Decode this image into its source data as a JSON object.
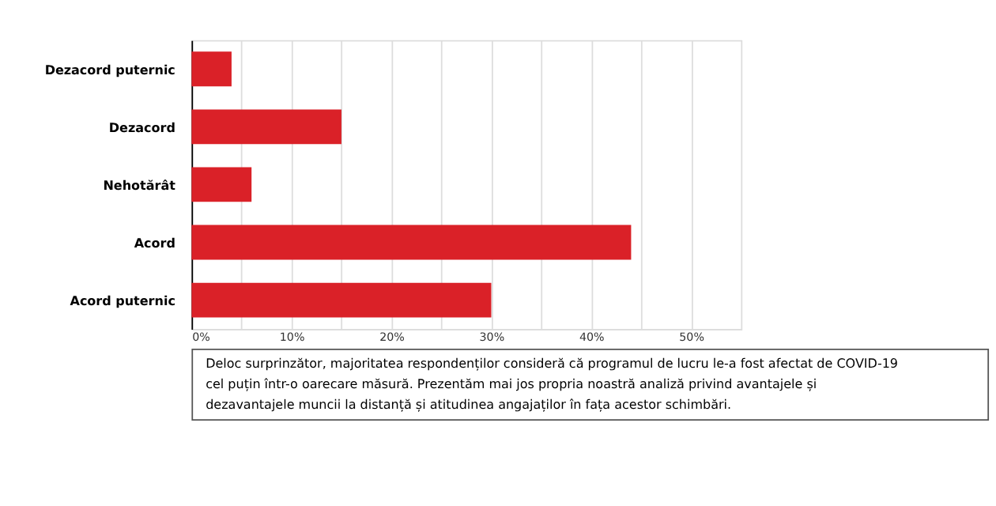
{
  "chart_data": {
    "type": "bar",
    "orientation": "horizontal",
    "categories": [
      "Dezacord puternic",
      "Dezacord",
      "Nehotărât",
      "Acord",
      "Acord puternic"
    ],
    "values": [
      4,
      15,
      6,
      44,
      30
    ],
    "color": "#da2128",
    "xlim": [
      0,
      55
    ],
    "xticks": [
      {
        "value": 0,
        "label": "0%"
      },
      {
        "value": 5,
        "label": null
      },
      {
        "value": 10,
        "label": "10%"
      },
      {
        "value": 15,
        "label": null
      },
      {
        "value": 20,
        "label": "20%"
      },
      {
        "value": 25,
        "label": null
      },
      {
        "value": 30,
        "label": "30%"
      },
      {
        "value": 35,
        "label": null
      },
      {
        "value": 40,
        "label": "40%"
      },
      {
        "value": 45,
        "label": null
      },
      {
        "value": 50,
        "label": "50%"
      }
    ],
    "grid": "x",
    "annotations": [
      "Deloc surprinzător, majoritatea respondenților consideră că programul de lucru le-a fost afectat de COVID-19 cel puțin într-o oarecare măsură. Prezentăm mai jos propria noastră analiză privind avantajele și dezavantajele muncii la distanță și atitudinea angajaților în fața acestor schimbări."
    ]
  }
}
